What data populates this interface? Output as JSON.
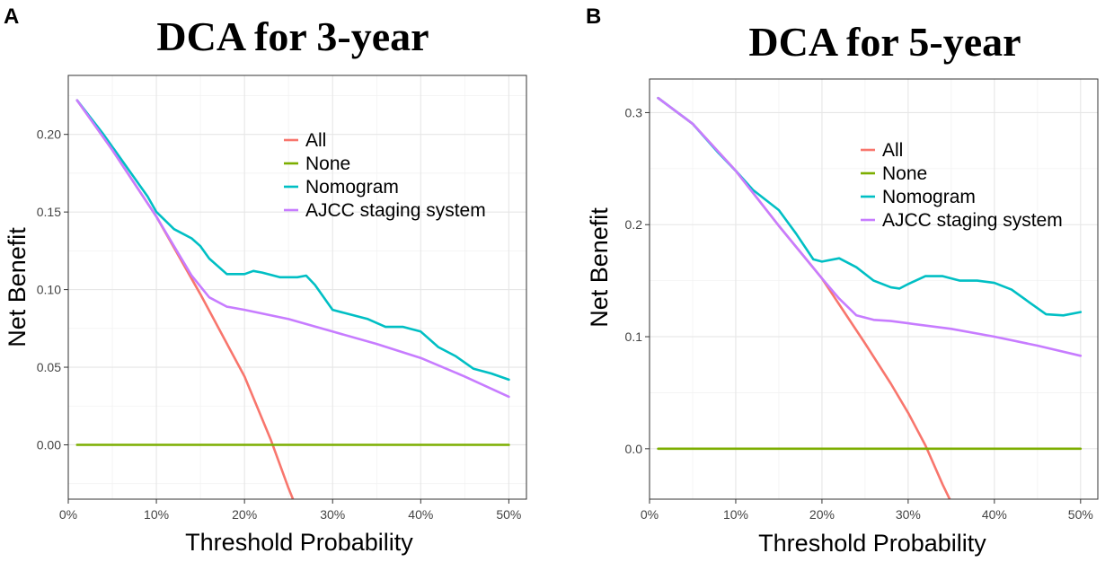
{
  "chart_data": [
    {
      "type": "line",
      "panel": "A",
      "title": "DCA  for 3-year",
      "xlabel": "Threshold Probability",
      "ylabel": "Net Benefit",
      "xlim": [
        0,
        0.52
      ],
      "ylim": [
        -0.035,
        0.238
      ],
      "x_ticks": [
        0,
        0.1,
        0.2,
        0.3,
        0.4,
        0.5
      ],
      "x_tick_labels": [
        "0%",
        "10%",
        "20%",
        "30%",
        "40%",
        "50%"
      ],
      "y_ticks": [
        0,
        0.05,
        0.1,
        0.15,
        0.2
      ],
      "y_tick_labels": [
        "0.00",
        "0.05",
        "0.10",
        "0.15",
        "0.20"
      ],
      "legend_position": "top-right inside",
      "series": [
        {
          "name": "All",
          "color": "#F8766D",
          "x": [
            0.01,
            0.05,
            0.1,
            0.15,
            0.2,
            0.23,
            0.25,
            0.26
          ],
          "y": [
            0.222,
            0.19,
            0.147,
            0.097,
            0.044,
            0.003,
            -0.028,
            -0.042
          ]
        },
        {
          "name": "None",
          "color": "#7CAE00",
          "x": [
            0.01,
            0.5
          ],
          "y": [
            0,
            0
          ]
        },
        {
          "name": "Nomogram",
          "color": "#00BFC4",
          "x": [
            0.01,
            0.04,
            0.07,
            0.09,
            0.1,
            0.12,
            0.14,
            0.15,
            0.16,
            0.18,
            0.2,
            0.21,
            0.22,
            0.24,
            0.26,
            0.27,
            0.28,
            0.3,
            0.32,
            0.34,
            0.36,
            0.37,
            0.38,
            0.4,
            0.42,
            0.44,
            0.46,
            0.48,
            0.5
          ],
          "y": [
            0.222,
            0.2,
            0.176,
            0.16,
            0.15,
            0.139,
            0.133,
            0.128,
            0.12,
            0.11,
            0.11,
            0.112,
            0.111,
            0.108,
            0.108,
            0.109,
            0.103,
            0.087,
            0.084,
            0.081,
            0.076,
            0.076,
            0.076,
            0.073,
            0.063,
            0.057,
            0.049,
            0.046,
            0.042
          ]
        },
        {
          "name": "AJCC staging system",
          "color": "#C77CFF",
          "x": [
            0.01,
            0.05,
            0.1,
            0.12,
            0.14,
            0.16,
            0.18,
            0.2,
            0.25,
            0.3,
            0.35,
            0.4,
            0.45,
            0.5
          ],
          "y": [
            0.222,
            0.19,
            0.147,
            0.128,
            0.109,
            0.095,
            0.089,
            0.087,
            0.081,
            0.073,
            0.065,
            0.056,
            0.044,
            0.031
          ]
        }
      ]
    },
    {
      "type": "line",
      "panel": "B",
      "title": "DCA  for 5-year",
      "xlabel": "Threshold Probability",
      "ylabel": "Net Benefit",
      "xlim": [
        0,
        0.52
      ],
      "ylim": [
        -0.045,
        0.33
      ],
      "x_ticks": [
        0,
        0.1,
        0.2,
        0.3,
        0.4,
        0.5
      ],
      "x_tick_labels": [
        "0%",
        "10%",
        "20%",
        "30%",
        "40%",
        "50%"
      ],
      "y_ticks": [
        0,
        0.1,
        0.2,
        0.3
      ],
      "y_tick_labels": [
        "0.0",
        "0.1",
        "0.2",
        "0.3"
      ],
      "legend_position": "top-right inside",
      "series": [
        {
          "name": "All",
          "color": "#F8766D",
          "x": [
            0.01,
            0.05,
            0.1,
            0.15,
            0.2,
            0.25,
            0.28,
            0.3,
            0.32,
            0.34,
            0.35
          ],
          "y": [
            0.313,
            0.29,
            0.248,
            0.199,
            0.152,
            0.094,
            0.058,
            0.032,
            0.003,
            -0.032,
            -0.048
          ]
        },
        {
          "name": "None",
          "color": "#7CAE00",
          "x": [
            0.01,
            0.5
          ],
          "y": [
            0,
            0
          ]
        },
        {
          "name": "Nomogram",
          "color": "#00BFC4",
          "x": [
            0.01,
            0.05,
            0.08,
            0.1,
            0.12,
            0.15,
            0.17,
            0.19,
            0.2,
            0.22,
            0.24,
            0.26,
            0.28,
            0.29,
            0.3,
            0.32,
            0.34,
            0.36,
            0.38,
            0.4,
            0.42,
            0.44,
            0.46,
            0.48,
            0.5
          ],
          "y": [
            0.313,
            0.29,
            0.264,
            0.248,
            0.231,
            0.213,
            0.192,
            0.169,
            0.167,
            0.17,
            0.162,
            0.15,
            0.144,
            0.143,
            0.147,
            0.154,
            0.154,
            0.15,
            0.15,
            0.148,
            0.142,
            0.131,
            0.12,
            0.119,
            0.122
          ]
        },
        {
          "name": "AJCC staging system",
          "color": "#C77CFF",
          "x": [
            0.01,
            0.05,
            0.1,
            0.15,
            0.2,
            0.22,
            0.24,
            0.26,
            0.28,
            0.3,
            0.35,
            0.4,
            0.45,
            0.5
          ],
          "y": [
            0.313,
            0.29,
            0.248,
            0.199,
            0.152,
            0.134,
            0.119,
            0.115,
            0.114,
            0.112,
            0.107,
            0.1,
            0.092,
            0.083
          ]
        }
      ]
    }
  ]
}
